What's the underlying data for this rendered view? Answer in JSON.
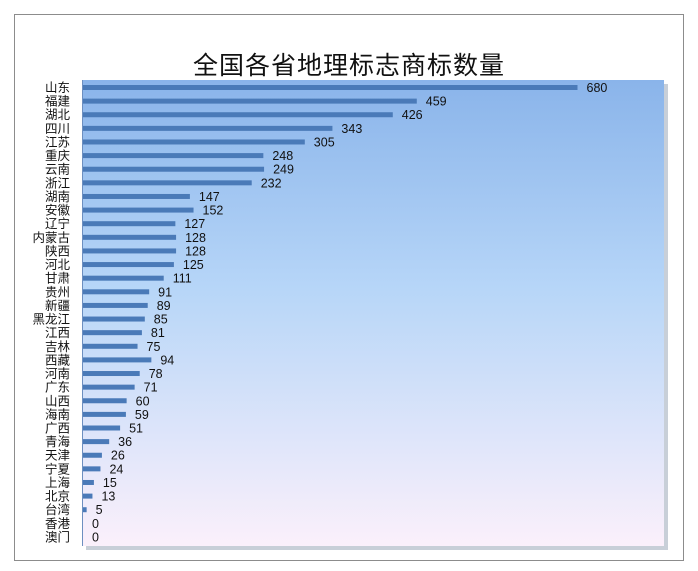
{
  "chart_data": {
    "type": "bar",
    "orientation": "horizontal",
    "title": "全国各省地理标志商标数量",
    "xlabel": "",
    "ylabel": "",
    "xlim": [
      0,
      740
    ],
    "grid": false,
    "legend": "none",
    "categories": [
      "山东",
      "福建",
      "湖北",
      "四川",
      "江苏",
      "重庆",
      "云南",
      "浙江",
      "湖南",
      "安徽",
      "辽宁",
      "内蒙古",
      "陕西",
      "河北",
      "甘肃",
      "贵州",
      "新疆",
      "黑龙江",
      "江西",
      "吉林",
      "西藏",
      "河南",
      "广东",
      "山西",
      "海南",
      "广西",
      "青海",
      "天津",
      "宁夏",
      "上海",
      "北京",
      "台湾",
      "香港",
      "澳门"
    ],
    "values": [
      680,
      459,
      426,
      343,
      305,
      248,
      249,
      232,
      147,
      152,
      127,
      128,
      128,
      125,
      111,
      91,
      89,
      85,
      81,
      75,
      94,
      78,
      71,
      60,
      59,
      51,
      36,
      26,
      24,
      15,
      13,
      5,
      0,
      0
    ],
    "data_labels": [
      "680",
      "459",
      "426",
      "343",
      "305",
      "248",
      "249",
      "232",
      "147",
      "152",
      "127",
      "128",
      "128",
      "125",
      "111",
      "91",
      "89",
      "85",
      "81",
      "75",
      "94",
      "78",
      "71",
      "60",
      "59",
      "51",
      "36",
      "26",
      "24",
      "15",
      "13",
      "5",
      "0",
      "0"
    ],
    "colors": {
      "bar": "#4a7ab8",
      "plot_top": "#8ab4ea",
      "plot_mid": "#b7d6f8",
      "plot_bottom": "#fbf0fb",
      "plot_edge": "#6d8fc0"
    }
  }
}
